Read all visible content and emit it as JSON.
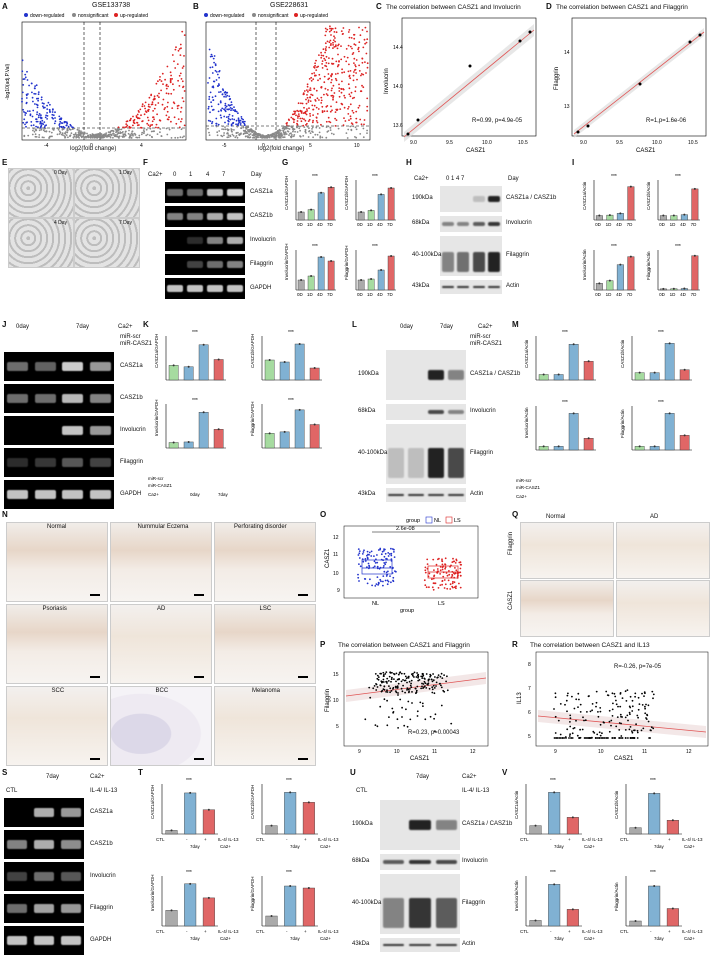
{
  "panels": [
    "A",
    "B",
    "C",
    "D",
    "E",
    "F",
    "G",
    "H",
    "I",
    "J",
    "K",
    "L",
    "M",
    "N",
    "O",
    "P",
    "Q",
    "R",
    "S",
    "T",
    "U",
    "V"
  ],
  "A": {
    "title": "GSE133738",
    "legend": [
      "down-regulated",
      "nonsignificant",
      "up-regulated"
    ],
    "ylabel": "-log10(adj.P.Val)",
    "xlabel": "log2(fold change)",
    "xticks": [
      "-4",
      "0",
      "4"
    ],
    "genes_left": [
      "RRM2",
      "AXIN",
      "MYBL2",
      "DLGAP5",
      "TUBA1B",
      "THBS1",
      "ITGB6"
    ],
    "genes_right": [
      "UNC5B",
      "LAMP3",
      "GPRMD",
      "TGM1",
      "EPR8O",
      "NOTCH3",
      "NDRG1",
      "DDIT3",
      "PADI3",
      "CASZ1"
    ]
  },
  "B": {
    "title": "GSE228631",
    "legend": [
      "down-regulated",
      "nonsignificant",
      "up-regulated"
    ],
    "ylabel": "-log10(adj.P.Val)",
    "xlabel": "log2(fold change)",
    "xticks": [
      "-5",
      "0",
      "5",
      "10"
    ],
    "genes_left": [
      "CDC20",
      "TGFBI",
      "PTHLH",
      "TOP2A",
      "ANLN",
      "TACC3",
      "CCNB1",
      "FST",
      "ADAM8"
    ],
    "genes_right": [
      "SPRR3F",
      "KLK7",
      "DSC1",
      "ALDH3A1",
      "EDM1",
      "LYPD3",
      "CASZ1",
      "TLR7"
    ]
  },
  "C": {
    "title": "The correlation between CASZ1 and Involucrin",
    "ylabel": "Involucrin",
    "xlabel": "CASZ1",
    "stat": "R=0.99, p=4.9e-05",
    "xticks": [
      "9.0",
      "9.5",
      "10.0",
      "10.5"
    ],
    "yticks": [
      "13.6",
      "14.0",
      "14.4"
    ]
  },
  "D": {
    "title": "The correlation between CASZ1 and Filaggrin",
    "ylabel": "Filaggrin",
    "xlabel": "CASZ1",
    "stat": "R=1,p=1.6e-06",
    "xticks": [
      "9.0",
      "9.5",
      "10.0",
      "10.5"
    ],
    "yticks": [
      "13",
      "14"
    ]
  },
  "E": {
    "labels": [
      "0 Day",
      "1 Day",
      "4 Day",
      "7 Day"
    ]
  },
  "F": {
    "ca": "Ca2+",
    "days": [
      "0",
      "1",
      "4",
      "7"
    ],
    "day_label": "Day",
    "rows": [
      "CASZ1a",
      "CASZ1b",
      "Involucrin",
      "Filaggrin",
      "GAPDH"
    ]
  },
  "G": {
    "charts": [
      {
        "ylabel": "CASZ1a/GAPDH",
        "cats": [
          "0D",
          "1D",
          "4D",
          "7D"
        ],
        "values": [
          1,
          1.3,
          3.4,
          4.1
        ]
      },
      {
        "ylabel": "CASZ1b/GAPDH",
        "cats": [
          "0D",
          "1D",
          "4D",
          "7D"
        ],
        "values": [
          1,
          1.2,
          3.2,
          4.0
        ]
      },
      {
        "ylabel": "Involucrin/GAPDH",
        "cats": [
          "0D",
          "1D",
          "4D",
          "7D"
        ],
        "values": [
          1,
          1.4,
          3.3,
          2.9
        ]
      },
      {
        "ylabel": "Filaggrin/GAPDH",
        "cats": [
          "0D",
          "1D",
          "4D",
          "7D"
        ],
        "values": [
          1,
          1.1,
          2.0,
          3.4
        ]
      }
    ]
  },
  "H": {
    "ca": "Ca2+",
    "days": [
      "0",
      "1",
      "4",
      "7"
    ],
    "day_label": "Day",
    "markers": [
      "190kDa",
      "125kDa",
      "68kDa",
      "40-100kDa",
      "43kDa"
    ],
    "rows": [
      "CASZ1a",
      "CASZ1b",
      "Involucrin",
      "Filaggrin",
      "Actin"
    ]
  },
  "I": {
    "charts": [
      {
        "ylabel": "CASZ1a/Actin",
        "cats": [
          "0D",
          "1D",
          "4D",
          "7D"
        ],
        "values": [
          1,
          1.1,
          1.5,
          7.5
        ]
      },
      {
        "ylabel": "CASZ1b/Actin",
        "cats": [
          "0D",
          "1D",
          "4D",
          "7D"
        ],
        "values": [
          1,
          1.0,
          1.2,
          7.0
        ]
      },
      {
        "ylabel": "Involucrin/Actin",
        "cats": [
          "0D",
          "1D",
          "4D",
          "7D"
        ],
        "values": [
          1,
          1.4,
          3.8,
          5.0
        ]
      },
      {
        "ylabel": "Filaggrin/Actin",
        "cats": [
          "0D",
          "1D",
          "4D",
          "7D"
        ],
        "values": [
          1,
          1.1,
          1.3,
          30
        ]
      }
    ]
  },
  "J": {
    "groups": [
      "0day",
      "7day"
    ],
    "ca": "Ca2+",
    "conds": [
      "miR-scr",
      "miR-CASZ1"
    ],
    "rows": [
      "CASZ1a",
      "CASZ1b",
      "Involucrin",
      "Filaggrin",
      "GAPDH"
    ]
  },
  "K": {
    "charts": [
      {
        "ylabel": "CASZ1a/GAPDH",
        "values": [
          1,
          0.9,
          2.4,
          1.4
        ]
      },
      {
        "ylabel": "CASZ1b/GAPDH",
        "values": [
          1,
          0.9,
          1.8,
          0.6
        ]
      },
      {
        "ylabel": "Involucrin/GAPDH",
        "values": [
          1,
          1.1,
          6.5,
          3.4
        ]
      },
      {
        "ylabel": "Filaggrin/GAPDH",
        "values": [
          1,
          1.1,
          2.6,
          1.6
        ]
      }
    ],
    "rowlabels": [
      "miR-scr",
      "miR-CASZ1",
      "Ca2+"
    ],
    "groups": [
      "0day",
      "7day"
    ]
  },
  "L": {
    "groups": [
      "0day",
      "7day"
    ],
    "ca": "Ca2+",
    "conds": [
      "miR-scr",
      "miR-CASZ1"
    ],
    "markers": [
      "190kDa",
      "125kDa",
      "68kDa",
      "40-100kDa",
      "43kDa"
    ],
    "rows": [
      "CASZ1a",
      "CASZ1b",
      "Involucrin",
      "Filaggrin",
      "Actin"
    ]
  },
  "M": {
    "charts": [
      {
        "ylabel": "CASZ1a/Actin",
        "values": [
          1,
          1,
          6.5,
          3.4
        ]
      },
      {
        "ylabel": "CASZ1b/Actin",
        "values": [
          1,
          1,
          5.0,
          1.4
        ]
      },
      {
        "ylabel": "Involucrin/Actin",
        "values": [
          1,
          1,
          10,
          3.2
        ]
      },
      {
        "ylabel": "Filaggrin/Actin",
        "values": [
          1,
          1,
          10,
          4
        ]
      }
    ]
  },
  "N": {
    "labels": [
      "Normal",
      "Nummular Eczema",
      "Perforating disorder",
      "Psoriasis",
      "AD",
      "LSC",
      "SCC",
      "BCC",
      "Melanoma"
    ]
  },
  "O": {
    "legend_title": "group",
    "legend": [
      "NL",
      "LS"
    ],
    "pval": "2.6e-08",
    "ylabel": "CASZ1",
    "xlabel": "group",
    "yticks": [
      "9",
      "10",
      "11",
      "12"
    ]
  },
  "P": {
    "title": "The correlation between CASZ1 and Filaggrin",
    "ylabel": "Filaggrin",
    "xlabel": "CASZ1",
    "stat": "R=0.23, p=0.00043",
    "xticks": [
      "9",
      "10",
      "11",
      "12"
    ],
    "yticks": [
      "5",
      "10",
      "15"
    ]
  },
  "Q": {
    "cols": [
      "Normal",
      "AD"
    ],
    "rows": [
      "Filaggrin",
      "CASZ1"
    ]
  },
  "R": {
    "title": "The correlation between CASZ1 and IL13",
    "ylabel": "IL13",
    "xlabel": "CASZ1",
    "stat": "R=-0.26, p=7e-05",
    "xticks": [
      "9",
      "10",
      "11",
      "12"
    ],
    "yticks": [
      "5",
      "6",
      "7",
      "8"
    ]
  },
  "S": {
    "group": "7day",
    "ca": "Ca2+",
    "ctl": "CTL",
    "treat": "IL-4/ IL-13",
    "rows": [
      "CASZ1a",
      "CASZ1b",
      "Involucrin",
      "Filaggrin",
      "GAPDH"
    ]
  },
  "T": {
    "charts": [
      {
        "ylabel": "CASZ1a/GAPDH",
        "values": [
          1,
          11.5,
          6.8
        ]
      },
      {
        "ylabel": "CASZ1b/GAPDH",
        "values": [
          1,
          5.0,
          3.8
        ]
      },
      {
        "ylabel": "Involucrin/GAPDH",
        "values": [
          1,
          2.7,
          1.8
        ]
      },
      {
        "ylabel": "Filaggrin/GAPDH",
        "values": [
          1,
          4.0,
          3.8
        ]
      }
    ]
  },
  "U": {
    "group": "7day",
    "ca": "Ca2+",
    "ctl": "CTL",
    "treat": "IL-4/ IL-13",
    "markers": [
      "190kDa",
      "125kDa",
      "68kDa",
      "40-100kDa",
      "43kDa"
    ],
    "rows": [
      "CASZ1a",
      "CASZ1b",
      "Involucrin",
      "Filaggrin",
      "Actin"
    ]
  },
  "V": {
    "charts": [
      {
        "ylabel": "CASZ1a/Actin",
        "values": [
          1,
          5.0,
          2.0
        ]
      },
      {
        "ylabel": "CASZ1b/Actin",
        "values": [
          1,
          6.5,
          2.2
        ]
      },
      {
        "ylabel": "Involucrin/Actin",
        "values": [
          1,
          7.5,
          3.0
        ]
      },
      {
        "ylabel": "Filaggrin/Actin",
        "values": [
          1,
          8.0,
          3.5
        ]
      }
    ]
  },
  "common": {
    "ctl": "CTL",
    "day7": "7day",
    "ca": "Ca2+",
    "treat": "IL-4/ IL-13",
    "dash": "-",
    "plus": "+",
    "sig3": "***",
    "sig2": "**",
    "sig1": "*",
    "sig4": "****",
    "ns": "ns"
  },
  "chart_data": [
    {
      "type": "scatter",
      "title": "The correlation between CASZ1 and Involucrin",
      "xlabel": "CASZ1",
      "ylabel": "Involucrin",
      "x": [
        8.9,
        9.1,
        10.0,
        10.5,
        10.55
      ],
      "y": [
        13.45,
        13.62,
        14.25,
        14.55,
        14.6
      ]
    },
    {
      "type": "scatter",
      "title": "The correlation between CASZ1 and Filaggrin",
      "xlabel": "CASZ1",
      "ylabel": "Filaggrin",
      "x": [
        8.9,
        9.1,
        10.0,
        10.5,
        10.55
      ],
      "y": [
        12.5,
        12.7,
        13.5,
        14.3,
        14.45
      ]
    },
    {
      "type": "bar",
      "ylabel": "CASZ1a/GAPDH",
      "categories": [
        "0D",
        "1D",
        "4D",
        "7D"
      ],
      "values": [
        1,
        1.3,
        3.4,
        4.1
      ]
    }
  ]
}
